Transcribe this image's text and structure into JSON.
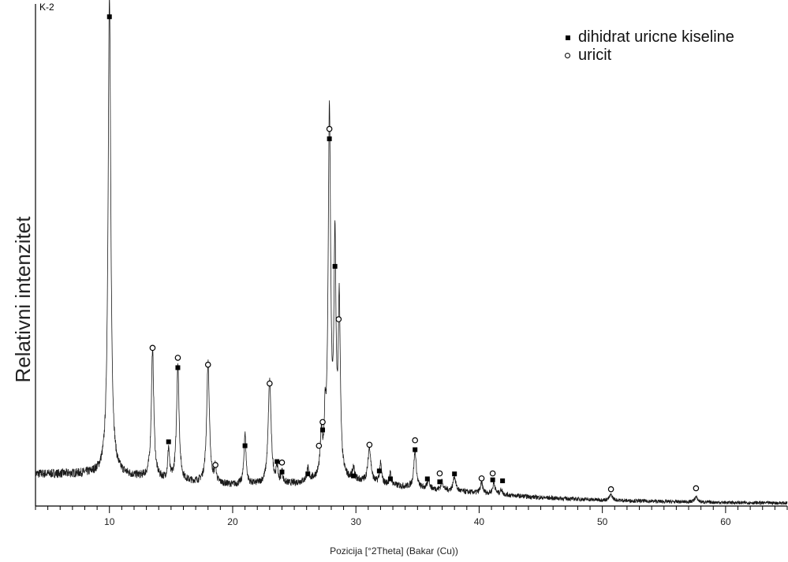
{
  "chart_data": {
    "type": "line",
    "panel_label": "K-2",
    "xlabel": "Pozicija [°2Theta] (Bakar (Cu))",
    "ylabel": "Relativni intenzitet",
    "xlim": [
      4.0,
      65.0
    ],
    "ylim": [
      0,
      100
    ],
    "x_ticks": [
      10,
      20,
      30,
      40,
      50,
      60
    ],
    "grid": false,
    "legend_position": "top-right",
    "legend": [
      {
        "marker": "square",
        "label": "dihidrat uricne kiseline"
      },
      {
        "marker": "circle",
        "label": "uricit"
      }
    ],
    "series": [
      {
        "baseline": [
          [
            4.0,
            6.5
          ],
          [
            10.0,
            6.5
          ],
          [
            15.0,
            5.0
          ],
          [
            20.0,
            4.2
          ],
          [
            25.0,
            4.4
          ],
          [
            27.0,
            5.0
          ],
          [
            30.0,
            4.8
          ],
          [
            35.0,
            3.6
          ],
          [
            40.0,
            2.6
          ],
          [
            45.0,
            1.7
          ],
          [
            50.0,
            1.2
          ],
          [
            55.0,
            0.9
          ],
          [
            60.0,
            0.7
          ],
          [
            65.0,
            0.6
          ]
        ],
        "peaks": [
          {
            "x": 10.0,
            "height": 96.5,
            "width": 0.13
          },
          {
            "x": 13.5,
            "height": 26.2,
            "width": 0.12
          },
          {
            "x": 14.8,
            "height": 6.3,
            "width": 0.08
          },
          {
            "x": 15.55,
            "height": 23.8,
            "width": 0.12
          },
          {
            "x": 18.0,
            "height": 24.5,
            "width": 0.13
          },
          {
            "x": 18.6,
            "height": 3.0,
            "width": 0.08
          },
          {
            "x": 21.0,
            "height": 10.3,
            "width": 0.1
          },
          {
            "x": 23.0,
            "height": 21.0,
            "width": 0.14
          },
          {
            "x": 23.6,
            "height": 3.0,
            "width": 0.08
          },
          {
            "x": 24.0,
            "height": 2.3,
            "width": 0.08
          },
          {
            "x": 26.1,
            "height": 2.3,
            "width": 0.1
          },
          {
            "x": 27.2,
            "height": 8.0,
            "width": 0.1
          },
          {
            "x": 27.5,
            "height": 9.0,
            "width": 0.08
          },
          {
            "x": 27.85,
            "height": 73.2,
            "width": 0.12
          },
          {
            "x": 28.3,
            "height": 45.0,
            "width": 0.1
          },
          {
            "x": 28.65,
            "height": 34.5,
            "width": 0.1
          },
          {
            "x": 29.8,
            "height": 2.3,
            "width": 0.1
          },
          {
            "x": 31.1,
            "height": 7.2,
            "width": 0.14
          },
          {
            "x": 32.0,
            "height": 4.0,
            "width": 0.1
          },
          {
            "x": 32.8,
            "height": 2.3,
            "width": 0.1
          },
          {
            "x": 34.8,
            "height": 7.5,
            "width": 0.12
          },
          {
            "x": 35.9,
            "height": 2.0,
            "width": 0.1
          },
          {
            "x": 37.0,
            "height": 1.8,
            "width": 0.1
          },
          {
            "x": 38.0,
            "height": 3.0,
            "width": 0.12
          },
          {
            "x": 40.2,
            "height": 2.0,
            "width": 0.12
          },
          {
            "x": 41.2,
            "height": 2.2,
            "width": 0.12
          },
          {
            "x": 41.8,
            "height": 1.0,
            "width": 0.1
          },
          {
            "x": 50.7,
            "height": 1.1,
            "width": 0.15
          },
          {
            "x": 57.6,
            "height": 1.0,
            "width": 0.15
          }
        ]
      }
    ],
    "peak_markers": [
      {
        "x": 10.0,
        "y": 99.0,
        "type": "square"
      },
      {
        "x": 13.5,
        "y": 32.0,
        "type": "circle"
      },
      {
        "x": 14.8,
        "y": 13.0,
        "type": "square"
      },
      {
        "x": 15.55,
        "y": 30.0,
        "type": "circle"
      },
      {
        "x": 15.55,
        "y": 28.0,
        "type": "square"
      },
      {
        "x": 18.0,
        "y": 28.6,
        "type": "circle"
      },
      {
        "x": 18.6,
        "y": 8.3,
        "type": "circle"
      },
      {
        "x": 21.0,
        "y": 12.2,
        "type": "square"
      },
      {
        "x": 23.0,
        "y": 24.8,
        "type": "circle"
      },
      {
        "x": 23.6,
        "y": 9.0,
        "type": "square"
      },
      {
        "x": 24.0,
        "y": 8.8,
        "type": "circle"
      },
      {
        "x": 24.0,
        "y": 6.9,
        "type": "square"
      },
      {
        "x": 26.1,
        "y": 6.5,
        "type": "square"
      },
      {
        "x": 27.0,
        "y": 12.2,
        "type": "circle"
      },
      {
        "x": 27.3,
        "y": 17.0,
        "type": "circle"
      },
      {
        "x": 27.3,
        "y": 15.4,
        "type": "square"
      },
      {
        "x": 27.85,
        "y": 76.3,
        "type": "circle"
      },
      {
        "x": 27.85,
        "y": 74.3,
        "type": "square"
      },
      {
        "x": 28.3,
        "y": 48.5,
        "type": "square"
      },
      {
        "x": 28.6,
        "y": 37.8,
        "type": "circle"
      },
      {
        "x": 29.8,
        "y": 6.1,
        "type": "square"
      },
      {
        "x": 31.1,
        "y": 12.4,
        "type": "circle"
      },
      {
        "x": 31.9,
        "y": 7.1,
        "type": "square"
      },
      {
        "x": 32.8,
        "y": 5.5,
        "type": "square"
      },
      {
        "x": 34.8,
        "y": 13.3,
        "type": "circle"
      },
      {
        "x": 34.8,
        "y": 11.4,
        "type": "square"
      },
      {
        "x": 35.8,
        "y": 5.5,
        "type": "square"
      },
      {
        "x": 36.8,
        "y": 6.6,
        "type": "circle"
      },
      {
        "x": 36.8,
        "y": 4.9,
        "type": "square"
      },
      {
        "x": 38.0,
        "y": 6.5,
        "type": "square"
      },
      {
        "x": 40.2,
        "y": 5.6,
        "type": "circle"
      },
      {
        "x": 41.1,
        "y": 6.6,
        "type": "circle"
      },
      {
        "x": 41.1,
        "y": 5.3,
        "type": "square"
      },
      {
        "x": 41.9,
        "y": 5.1,
        "type": "square"
      },
      {
        "x": 50.7,
        "y": 3.4,
        "type": "circle"
      },
      {
        "x": 57.6,
        "y": 3.6,
        "type": "circle"
      }
    ]
  }
}
